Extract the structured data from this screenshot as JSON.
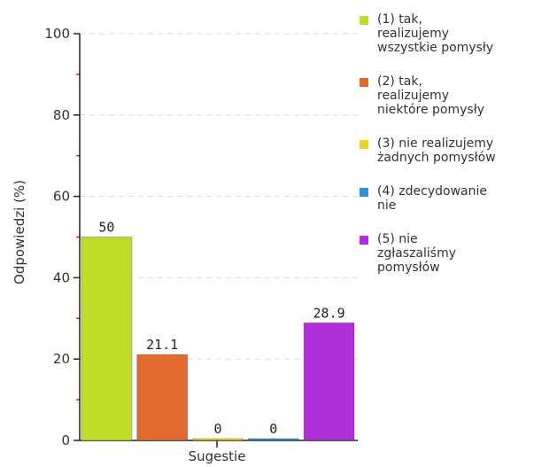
{
  "chart_data": {
    "type": "bar",
    "categories": [
      "(1) tak,\nrealizujemy\nwszystkie pomysły",
      "(2) tak,\nrealizujemy\nniektóre pomysły",
      "(3) nie realizujemy\nżadnych pomysłów",
      "(4) zdecydowanie\nnie",
      "(5) nie\nzgłaszaliśmy\npomysłów"
    ],
    "values": [
      50,
      21.1,
      0,
      0,
      28.9
    ],
    "data_labels": [
      "50",
      "21.1",
      "0",
      "0",
      "28.9"
    ],
    "colors": [
      "#c0dc2a",
      "#e46a2e",
      "#e6d52a",
      "#2f8fd8",
      "#b02fd9"
    ],
    "xlabel": "Sugestie",
    "ylabel": "Odpowiedzi (%)",
    "ylim": [
      0,
      100
    ],
    "yticks": [
      0,
      20,
      40,
      60,
      80,
      100
    ],
    "grid": true,
    "legend_position": "right"
  }
}
